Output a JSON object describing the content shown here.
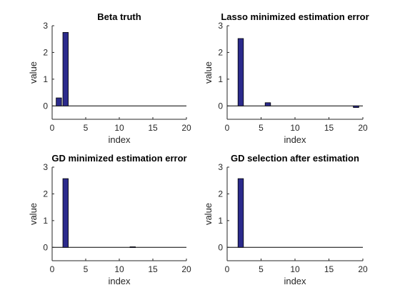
{
  "figure": {
    "bar_color": "#2B2A8C",
    "bar_edge_color": "#000000"
  },
  "chart_data": [
    {
      "type": "bar",
      "title": "Beta truth",
      "xlabel": "index",
      "ylabel": "value",
      "xlim": [
        0,
        20
      ],
      "ylim": [
        -0.5,
        3
      ],
      "xticks": [
        "0",
        "5",
        "10",
        "15",
        "20"
      ],
      "yticks": [
        "0",
        "1",
        "2",
        "3"
      ],
      "x": [
        1,
        2
      ],
      "values": [
        0.3,
        2.75
      ]
    },
    {
      "type": "bar",
      "title": "Lasso minimized estimation error",
      "xlabel": "index",
      "ylabel": "value",
      "xlim": [
        0,
        20
      ],
      "ylim": [
        -0.5,
        3
      ],
      "xticks": [
        "0",
        "5",
        "10",
        "15",
        "20"
      ],
      "yticks": [
        "0",
        "1",
        "2",
        "3"
      ],
      "x": [
        2,
        6,
        19
      ],
      "values": [
        2.52,
        0.12,
        -0.06
      ]
    },
    {
      "type": "bar",
      "title": "GD minimized estimation error",
      "xlabel": "index",
      "ylabel": "value",
      "xlim": [
        0,
        20
      ],
      "ylim": [
        -0.5,
        3
      ],
      "xticks": [
        "0",
        "5",
        "10",
        "15",
        "20"
      ],
      "yticks": [
        "0",
        "1",
        "2",
        "3"
      ],
      "x": [
        2,
        12
      ],
      "values": [
        2.57,
        0.02
      ]
    },
    {
      "type": "bar",
      "title": "GD selection after estimation",
      "xlabel": "index",
      "ylabel": "value",
      "xlim": [
        0,
        20
      ],
      "ylim": [
        -0.5,
        3
      ],
      "xticks": [
        "0",
        "5",
        "10",
        "15",
        "20"
      ],
      "yticks": [
        "0",
        "1",
        "2",
        "3"
      ],
      "x": [
        2
      ],
      "values": [
        2.57
      ]
    }
  ]
}
